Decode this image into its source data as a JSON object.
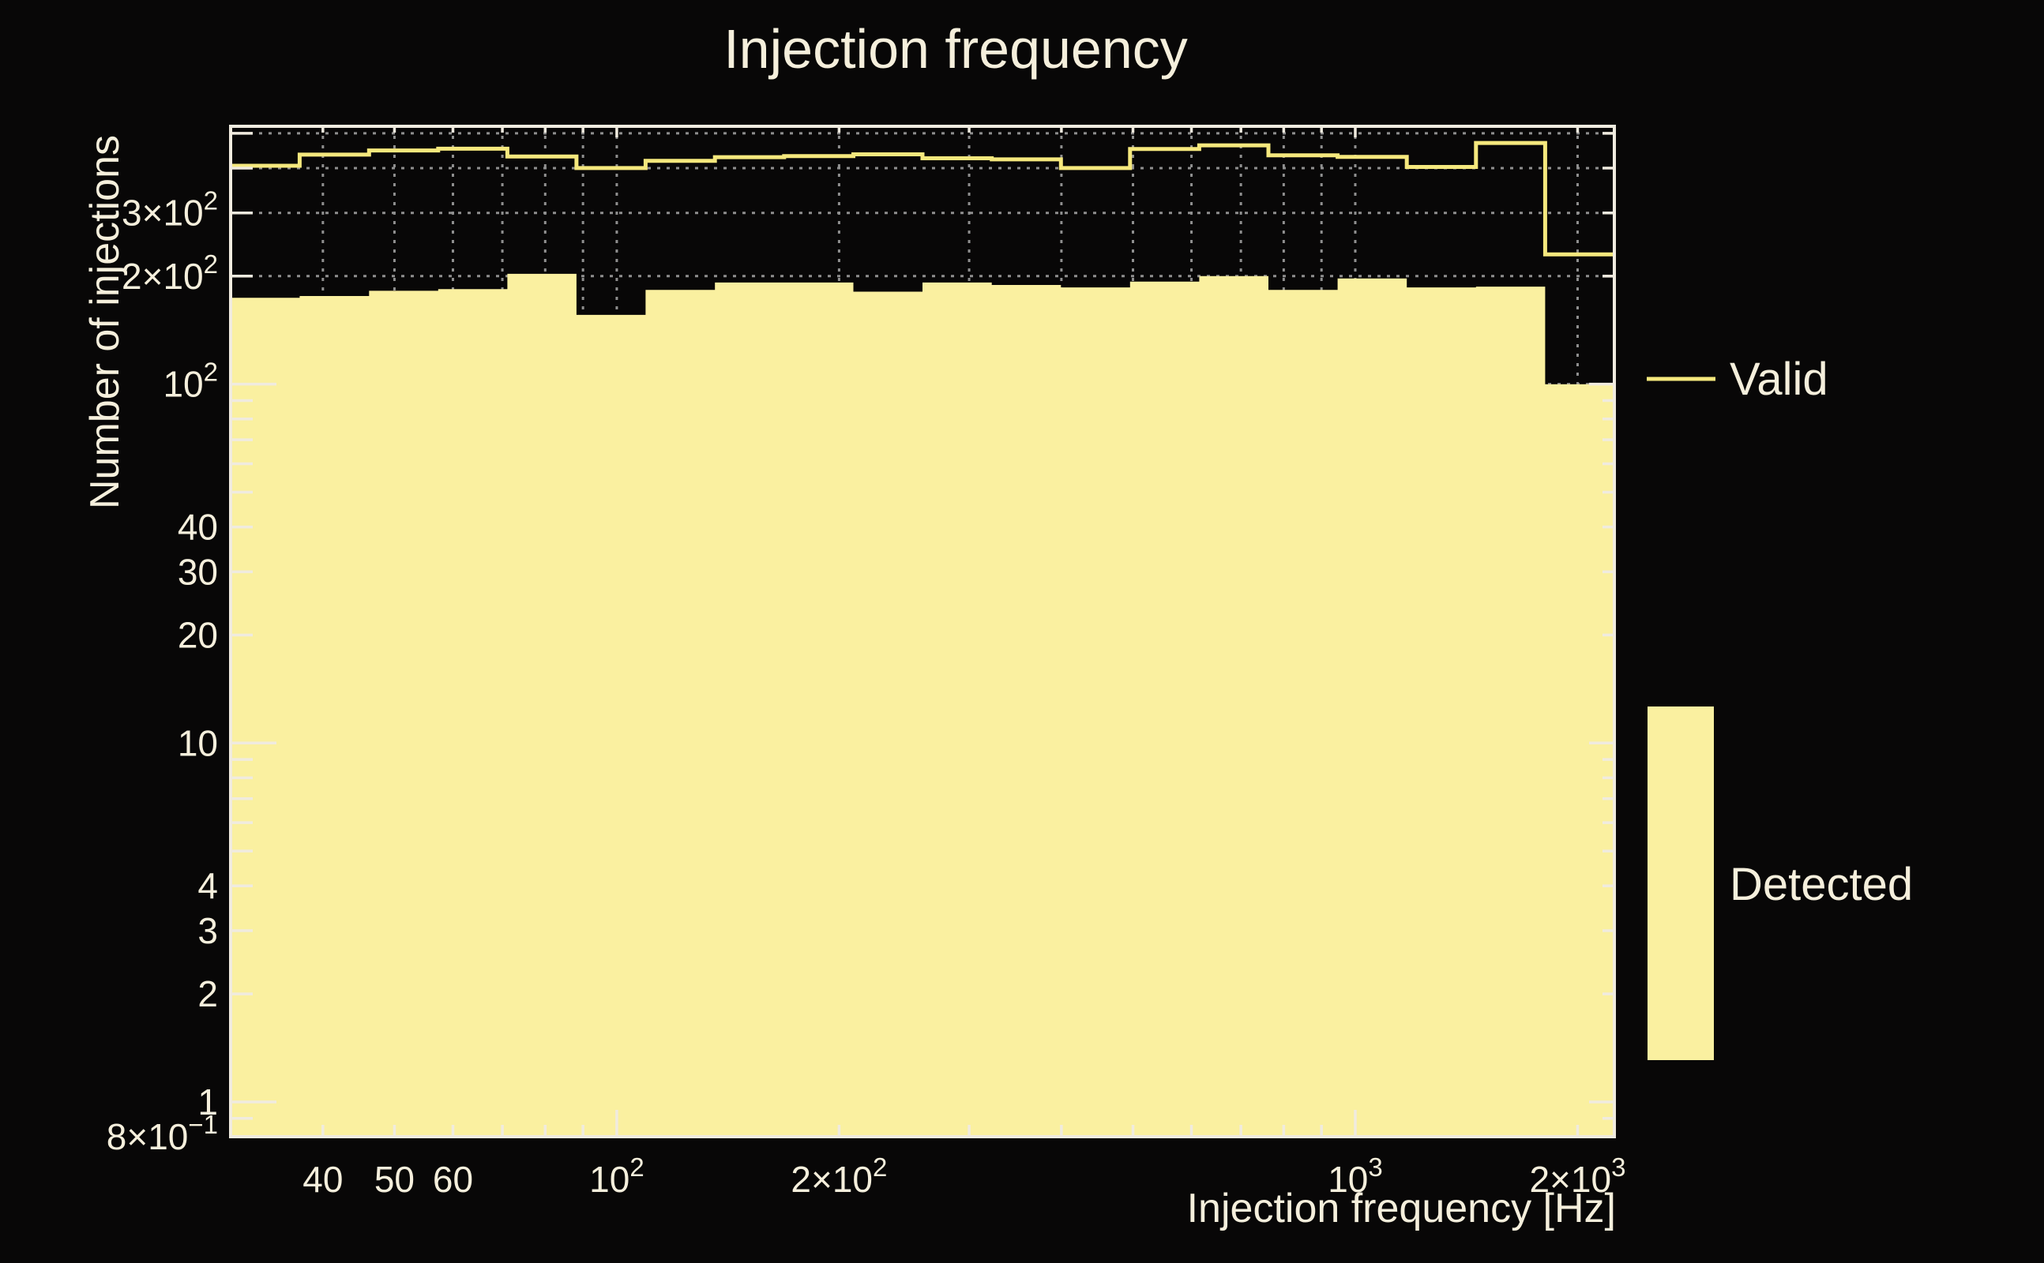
{
  "title": "Injection frequency",
  "colors": {
    "background": "#080707",
    "detected_fill": "#FAF0A0",
    "valid_line": "#F5E87D",
    "frame": "#F0EBDF",
    "text": "#F5EFDC",
    "grid": "#8F8F8F"
  },
  "legend": {
    "items": [
      {
        "label": "Valid",
        "style": "line"
      },
      {
        "label": "Detected",
        "style": "fill"
      }
    ]
  },
  "chart_data": {
    "type": "step-histogram",
    "title": "Injection frequency",
    "xlabel": "Injection frequency [Hz]",
    "ylabel": "Number of injections",
    "x_scale": "log",
    "y_scale": "log",
    "xlim": [
      30,
      2242.8
    ],
    "ylim": [
      0.8,
      523
    ],
    "grid": "dotted gridlines at every log tick, both axes, drawn beneath histograms",
    "legend_position": "right of plot, outside axes",
    "bin_edges_hz": [
      30,
      37.2,
      46.2,
      57.3,
      71.1,
      88.2,
      109.4,
      135.8,
      168.5,
      209.1,
      259.4,
      321.9,
      399.4,
      495.5,
      614.8,
      762.8,
      946.4,
      1174.2,
      1456.9,
      1807.6,
      2242.8
    ],
    "series": [
      {
        "name": "Valid",
        "style": "line",
        "values": [
          406,
          436,
          448,
          453,
          431,
          400,
          419,
          429,
          432,
          437,
          426,
          423,
          400,
          452,
          463,
          434,
          430,
          403,
          470,
          230
        ]
      },
      {
        "name": "Detected",
        "style": "fill",
        "values": [
          174,
          176,
          182,
          184,
          203,
          156,
          183,
          192,
          192,
          181,
          192,
          189,
          186,
          193,
          200,
          183,
          197,
          186,
          187,
          100
        ]
      }
    ],
    "x_tick_labels": [
      {
        "v": 40,
        "base": "40"
      },
      {
        "v": 50,
        "base": "50"
      },
      {
        "v": 60,
        "base": "60"
      },
      {
        "v": 100,
        "base": "10",
        "exp": "2"
      },
      {
        "v": 200,
        "base": "2×10",
        "exp": "2"
      },
      {
        "v": 1000,
        "base": "10",
        "exp": "3"
      },
      {
        "v": 2000,
        "base": "2×10",
        "exp": "3"
      }
    ],
    "y_tick_labels": [
      {
        "v": 0.8,
        "base": "8×10",
        "exp": "−1"
      },
      {
        "v": 1,
        "base": "1"
      },
      {
        "v": 2,
        "base": "2"
      },
      {
        "v": 3,
        "base": "3"
      },
      {
        "v": 4,
        "base": "4"
      },
      {
        "v": 10,
        "base": "10"
      },
      {
        "v": 20,
        "base": "20"
      },
      {
        "v": 30,
        "base": "30"
      },
      {
        "v": 40,
        "base": "40"
      },
      {
        "v": 100,
        "base": "10",
        "exp": "2"
      },
      {
        "v": 200,
        "base": "2×10",
        "exp": "2"
      },
      {
        "v": 300,
        "base": "3×10",
        "exp": "2"
      }
    ]
  }
}
